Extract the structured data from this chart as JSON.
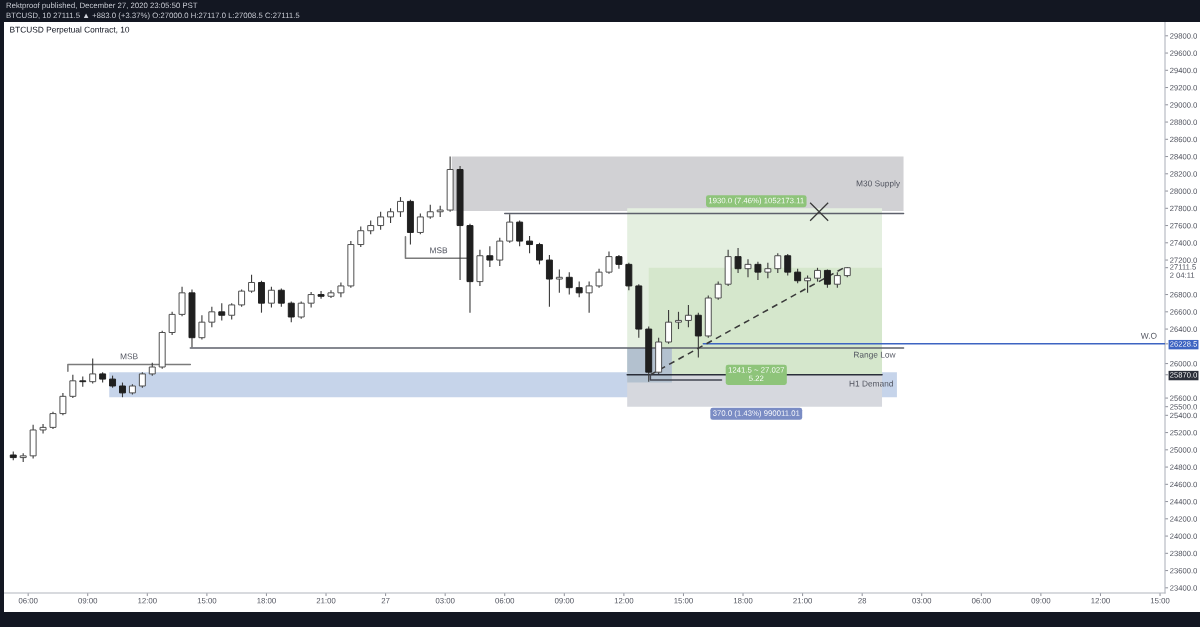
{
  "chart_data": {
    "type": "candlestick",
    "title": "BTCUSD Perpetual Contract, 10",
    "subtitle": "BTCUSD, 10 27111.5 ▲ +883.0 (+3.37%) O:27000.0 H:27117.0 L:27008.5 C:27111.5",
    "x": [
      "2020-12-26T05:15",
      "2020-12-26T05:45",
      "2020-12-26T06:15",
      "2020-12-26T06:45",
      "2020-12-26T07:15",
      "2020-12-26T07:45",
      "2020-12-26T08:15",
      "2020-12-26T08:45",
      "2020-12-26T09:15",
      "2020-12-26T09:45",
      "2020-12-26T10:15",
      "2020-12-26T10:45",
      "2020-12-26T11:15",
      "2020-12-26T11:45",
      "2020-12-26T12:15",
      "2020-12-26T12:45",
      "2020-12-26T13:15",
      "2020-12-26T13:45",
      "2020-12-26T14:15",
      "2020-12-26T14:45",
      "2020-12-26T15:15",
      "2020-12-26T15:45",
      "2020-12-26T16:15",
      "2020-12-26T16:45",
      "2020-12-26T17:15",
      "2020-12-26T17:45",
      "2020-12-26T18:15",
      "2020-12-26T18:45",
      "2020-12-26T19:15",
      "2020-12-26T19:45",
      "2020-12-26T20:15",
      "2020-12-26T20:45",
      "2020-12-26T21:15",
      "2020-12-26T21:45",
      "2020-12-26T22:15",
      "2020-12-26T22:45",
      "2020-12-26T23:15",
      "2020-12-26T23:45",
      "2020-12-27T00:15",
      "2020-12-27T00:45",
      "2020-12-27T01:15",
      "2020-12-27T01:45",
      "2020-12-27T02:15",
      "2020-12-27T02:45",
      "2020-12-27T03:15",
      "2020-12-27T03:45",
      "2020-12-27T04:15",
      "2020-12-27T04:45",
      "2020-12-27T05:15",
      "2020-12-27T05:45",
      "2020-12-27T06:15",
      "2020-12-27T06:45",
      "2020-12-27T07:15",
      "2020-12-27T07:45",
      "2020-12-27T08:15",
      "2020-12-27T08:45",
      "2020-12-27T09:15",
      "2020-12-27T09:45",
      "2020-12-27T10:15",
      "2020-12-27T10:45",
      "2020-12-27T11:15",
      "2020-12-27T11:45",
      "2020-12-27T12:15",
      "2020-12-27T12:45",
      "2020-12-27T13:15",
      "2020-12-27T13:45",
      "2020-12-27T14:15",
      "2020-12-27T14:45",
      "2020-12-27T15:15",
      "2020-12-27T15:45",
      "2020-12-27T16:15",
      "2020-12-27T16:45",
      "2020-12-27T17:15",
      "2020-12-27T17:45",
      "2020-12-27T18:15",
      "2020-12-27T18:45",
      "2020-12-27T19:15",
      "2020-12-27T19:45",
      "2020-12-27T20:15",
      "2020-12-27T20:45",
      "2020-12-27T21:15",
      "2020-12-27T21:45",
      "2020-12-27T22:15",
      "2020-12-27T22:45",
      "2020-12-27T23:15"
    ],
    "ohlc": [
      [
        24940,
        24980,
        24880,
        24910
      ],
      [
        24910,
        24960,
        24860,
        24930
      ],
      [
        24930,
        25290,
        24900,
        25230
      ],
      [
        25230,
        25300,
        25190,
        25260
      ],
      [
        25260,
        25440,
        25240,
        25420
      ],
      [
        25420,
        25660,
        25400,
        25620
      ],
      [
        25620,
        25870,
        25600,
        25800
      ],
      [
        25800,
        25850,
        25730,
        25790
      ],
      [
        25790,
        26060,
        25770,
        25880
      ],
      [
        25880,
        25900,
        25780,
        25820
      ],
      [
        25820,
        25860,
        25720,
        25740
      ],
      [
        25740,
        25780,
        25610,
        25660
      ],
      [
        25660,
        25760,
        25640,
        25740
      ],
      [
        25740,
        25900,
        25720,
        25880
      ],
      [
        25880,
        26010,
        25860,
        25960
      ],
      [
        25960,
        26380,
        25940,
        26360
      ],
      [
        26360,
        26600,
        26330,
        26570
      ],
      [
        26570,
        26890,
        26550,
        26820
      ],
      [
        26820,
        26860,
        26190,
        26300
      ],
      [
        26300,
        26560,
        26280,
        26480
      ],
      [
        26480,
        26660,
        26420,
        26600
      ],
      [
        26600,
        26700,
        26500,
        26560
      ],
      [
        26560,
        26700,
        26510,
        26680
      ],
      [
        26680,
        26860,
        26660,
        26840
      ],
      [
        26840,
        27030,
        26820,
        26940
      ],
      [
        26940,
        26960,
        26590,
        26700
      ],
      [
        26700,
        26890,
        26650,
        26850
      ],
      [
        26850,
        26870,
        26660,
        26700
      ],
      [
        26700,
        26720,
        26480,
        26540
      ],
      [
        26540,
        26720,
        26520,
        26700
      ],
      [
        26700,
        26830,
        26650,
        26800
      ],
      [
        26800,
        26840,
        26750,
        26780
      ],
      [
        26780,
        26850,
        26760,
        26820
      ],
      [
        26820,
        26940,
        26770,
        26900
      ],
      [
        26900,
        27420,
        26880,
        27380
      ],
      [
        27380,
        27590,
        27350,
        27540
      ],
      [
        27540,
        27660,
        27500,
        27600
      ],
      [
        27600,
        27760,
        27550,
        27700
      ],
      [
        27700,
        27800,
        27630,
        27760
      ],
      [
        27760,
        27930,
        27700,
        27880
      ],
      [
        27880,
        27900,
        27380,
        27520
      ],
      [
        27520,
        27740,
        27500,
        27700
      ],
      [
        27700,
        27840,
        27680,
        27760
      ],
      [
        27760,
        27830,
        27700,
        27780
      ],
      [
        27780,
        28400,
        27760,
        28250
      ],
      [
        28250,
        28290,
        26970,
        27600
      ],
      [
        27600,
        27620,
        26590,
        26950
      ],
      [
        26950,
        27320,
        26900,
        27250
      ],
      [
        27250,
        27360,
        27120,
        27200
      ],
      [
        27200,
        27460,
        27130,
        27420
      ],
      [
        27420,
        27730,
        27400,
        27640
      ],
      [
        27640,
        27660,
        27360,
        27420
      ],
      [
        27420,
        27480,
        27280,
        27380
      ],
      [
        27380,
        27400,
        27150,
        27200
      ],
      [
        27200,
        27260,
        26660,
        26980
      ],
      [
        26980,
        27090,
        26820,
        27000
      ],
      [
        27000,
        27060,
        26800,
        26880
      ],
      [
        26880,
        26950,
        26770,
        26820
      ],
      [
        26820,
        26950,
        26590,
        26900
      ],
      [
        26900,
        27100,
        26880,
        27060
      ],
      [
        27060,
        27300,
        27040,
        27240
      ],
      [
        27240,
        27260,
        27100,
        27150
      ],
      [
        27150,
        27170,
        26850,
        26900
      ],
      [
        26900,
        26920,
        26300,
        26400
      ],
      [
        26400,
        26430,
        25790,
        25900
      ],
      [
        25900,
        26300,
        25880,
        26250
      ],
      [
        26250,
        26620,
        26230,
        26480
      ],
      [
        26480,
        26600,
        26400,
        26500
      ],
      [
        26500,
        26680,
        26420,
        26560
      ],
      [
        26560,
        26590,
        26070,
        26320
      ],
      [
        26320,
        26790,
        26300,
        26760
      ],
      [
        26760,
        26950,
        26740,
        26920
      ],
      [
        26920,
        27320,
        26900,
        27240
      ],
      [
        27240,
        27340,
        27050,
        27100
      ],
      [
        27100,
        27210,
        27000,
        27150
      ],
      [
        27150,
        27180,
        26970,
        27060
      ],
      [
        27060,
        27170,
        26990,
        27100
      ],
      [
        27100,
        27280,
        27050,
        27250
      ],
      [
        27250,
        27270,
        27020,
        27060
      ],
      [
        27060,
        27100,
        26930,
        26960
      ],
      [
        26960,
        27020,
        26820,
        26990
      ],
      [
        26990,
        27110,
        26950,
        27080
      ],
      [
        27080,
        27090,
        26880,
        26920
      ],
      [
        26920,
        27060,
        26880,
        27020
      ],
      [
        27020,
        27120,
        27000,
        27111.5
      ]
    ],
    "series": [
      {
        "type": "area",
        "x": [
          "2020-12-26T10:05",
          "2020-12-28T01:45"
        ],
        "values": [
          null,
          null
        ],
        "lower": [
          25610,
          25610
        ],
        "upper": [
          25900,
          25900
        ],
        "color": "#c6d4ea"
      },
      {
        "type": "area",
        "x": [
          "2020-12-27T03:20",
          "2020-12-28T02:05"
        ],
        "values": [
          null,
          null
        ],
        "lower": [
          27770,
          27770
        ],
        "upper": [
          28400,
          28400
        ],
        "color": "#d1d1d4"
      },
      {
        "type": "area",
        "x": [
          "2020-12-27T12:10",
          "2020-12-28T01:00"
        ],
        "values": [
          null,
          null
        ],
        "lower": [
          25870,
          25870
        ],
        "upper": [
          27800,
          27800
        ],
        "color": "#e4efe0"
      },
      {
        "type": "area",
        "x": [
          "2020-12-27T12:10",
          "2020-12-28T01:00"
        ],
        "values": [
          null,
          null
        ],
        "lower": [
          25500,
          25500
        ],
        "upper": [
          25870,
          25870
        ],
        "color": "#d6d8de"
      },
      {
        "type": "area",
        "x": [
          "2020-12-27T13:15",
          "2020-12-28T01:00"
        ],
        "values": [
          null,
          null
        ],
        "lower": [
          25870,
          25870
        ],
        "upper": [
          27111.5,
          27111.5
        ],
        "color": "#d5e7cc"
      },
      {
        "type": "area",
        "x": [
          "2020-12-27T12:10",
          "2020-12-27T14:25"
        ],
        "values": [
          null,
          null
        ],
        "lower": [
          25780,
          25780
        ],
        "upper": [
          26180,
          26180
        ],
        "color": "#b3c1cf"
      },
      {
        "type": "line",
        "name": "MSB",
        "x": [
          "2020-12-26T08:00",
          "2020-12-26T08:00",
          "2020-12-26T14:10"
        ],
        "values": [
          25910,
          25990,
          25990
        ],
        "color": "#7b7b7b"
      },
      {
        "type": "line",
        "name": "MSB",
        "x": [
          "2020-12-27T01:00",
          "2020-12-27T01:00",
          "2020-12-27T04:20"
        ],
        "values": [
          27470,
          27220,
          27220
        ],
        "color": "#7b7b7b"
      },
      {
        "type": "line",
        "name": "Range Low",
        "x": [
          "2020-12-26T14:10",
          "2020-12-28T02:05"
        ],
        "values": [
          26180,
          26180
        ],
        "color": "#5d606b"
      },
      {
        "type": "line",
        "x": [
          "2020-12-27T06:00",
          "2020-12-28T02:05"
        ],
        "values": [
          27740,
          27740
        ],
        "color": "#5d606b"
      },
      {
        "type": "line",
        "x": [
          "2020-12-27T12:10",
          "2020-12-28T01:00"
        ],
        "values": [
          25870,
          25870
        ],
        "color": "#2a2e39"
      },
      {
        "type": "line",
        "name": "W.O",
        "x": [
          "2020-12-27T16:00",
          "2020-12-28T15:15"
        ],
        "values": [
          26228.5,
          26228.5
        ],
        "color": "#3d64c2"
      },
      {
        "type": "line",
        "x": [
          "2020-12-27T13:20",
          "2020-12-27T23:05"
        ],
        "values": [
          25870,
          27111.5
        ],
        "color": "#3a3a3a",
        "line_style": "dashed"
      },
      {
        "type": "line",
        "x": [
          "2020-12-27T13:20",
          "2020-12-27T13:20",
          "2020-12-27T16:55"
        ],
        "values": [
          25870,
          25810,
          25810
        ],
        "color": "#434651"
      },
      {
        "type": "scatter",
        "x": [
          "2020-12-27T21:50"
        ],
        "values": [
          27760
        ],
        "color": "#3a3a3a",
        "marker": "cross"
      }
    ],
    "annotations": [
      "Rektproof published, December 27, 2020 23:05:50 PST",
      {
        "text": "M30 Supply",
        "x": "2020-12-28T02:05",
        "y": 28080
      },
      {
        "text": "H1 Demand",
        "x": "2020-12-28T01:45",
        "y": 25760
      },
      {
        "text": "1930.0 (7.46%) 1052173.11",
        "x": "2020-12-27T18:40",
        "y": 27800
      },
      {
        "text": "1241.5 ~ 27.027\n5.22",
        "x": "2020-12-27T18:40",
        "y": 25870
      },
      {
        "text": "370.0 (1.43%) 990011.01",
        "x": "2020-12-27T18:40",
        "y": 25500
      }
    ],
    "xlim": [
      "2020-12-26T04:47",
      "2020-12-28T15:15"
    ],
    "xticks": [
      {
        "value": "2020-12-26T06:00",
        "label": "06:00"
      },
      {
        "value": "2020-12-26T09:00",
        "label": "09:00"
      },
      {
        "value": "2020-12-26T12:00",
        "label": "12:00"
      },
      {
        "value": "2020-12-26T15:00",
        "label": "15:00"
      },
      {
        "value": "2020-12-26T18:00",
        "label": "18:00"
      },
      {
        "value": "2020-12-26T21:00",
        "label": "21:00"
      },
      {
        "value": "2020-12-27T00:00",
        "label": "27"
      },
      {
        "value": "2020-12-27T03:00",
        "label": "03:00"
      },
      {
        "value": "2020-12-27T06:00",
        "label": "06:00"
      },
      {
        "value": "2020-12-27T09:00",
        "label": "09:00"
      },
      {
        "value": "2020-12-27T12:00",
        "label": "12:00"
      },
      {
        "value": "2020-12-27T15:00",
        "label": "15:00"
      },
      {
        "value": "2020-12-27T18:00",
        "label": "18:00"
      },
      {
        "value": "2020-12-27T21:00",
        "label": "21:00"
      },
      {
        "value": "2020-12-28T00:00",
        "label": "28"
      },
      {
        "value": "2020-12-28T03:00",
        "label": "03:00"
      },
      {
        "value": "2020-12-28T06:00",
        "label": "06:00"
      },
      {
        "value": "2020-12-28T09:00",
        "label": "09:00"
      },
      {
        "value": "2020-12-28T12:00",
        "label": "12:00"
      },
      {
        "value": "2020-12-28T15:00",
        "label": "15:00"
      }
    ],
    "ylim": [
      23340,
      29960
    ],
    "yticks": [
      {
        "value": 23400,
        "label": "23400.0"
      },
      {
        "value": 23600,
        "label": "23600.0"
      },
      {
        "value": 23800,
        "label": "23800.0"
      },
      {
        "value": 24000,
        "label": "24000.0"
      },
      {
        "value": 24200,
        "label": "24200.0"
      },
      {
        "value": 24400,
        "label": "24400.0"
      },
      {
        "value": 24600,
        "label": "24600.0"
      },
      {
        "value": 24800,
        "label": "24800.0"
      },
      {
        "value": 25000,
        "label": "25000.0"
      },
      {
        "value": 25200,
        "label": "25200.0"
      },
      {
        "value": 25400,
        "label": "25400.0"
      },
      {
        "value": 25500,
        "label": "25500.0"
      },
      {
        "value": 25600,
        "label": "25600.0"
      },
      {
        "value": 25870,
        "label": "25870.0"
      },
      {
        "value": 26000,
        "label": "26000.0"
      },
      {
        "value": 26228.5,
        "label": "26228.5"
      },
      {
        "value": 26400,
        "label": "26400.0"
      },
      {
        "value": 26600,
        "label": "26600.0"
      },
      {
        "value": 26800,
        "label": "26800.0"
      },
      {
        "value": 27111.5,
        "label": "27111.5\n2 04:11"
      },
      {
        "value": 27200,
        "label": "27200.0"
      },
      {
        "value": 27400,
        "label": "27400.0"
      },
      {
        "value": 27600,
        "label": "27600.0"
      },
      {
        "value": 27800,
        "label": "27800.0"
      },
      {
        "value": 28000,
        "label": "28000.0"
      },
      {
        "value": 28200,
        "label": "28200.0"
      },
      {
        "value": 28400,
        "label": "28400.0"
      },
      {
        "value": 28600,
        "label": "28600.0"
      },
      {
        "value": 28800,
        "label": "28800.0"
      },
      {
        "value": 29000,
        "label": "29000.0"
      },
      {
        "value": 29200,
        "label": "29200.0"
      },
      {
        "value": 29400,
        "label": "29400.0"
      },
      {
        "value": 29600,
        "label": "29600.0"
      },
      {
        "value": 29800,
        "label": "29800.0"
      }
    ]
  }
}
